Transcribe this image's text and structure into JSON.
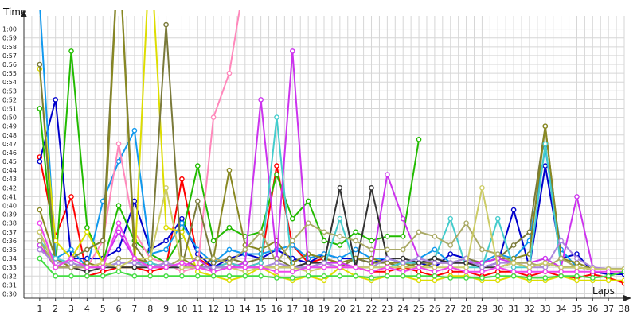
{
  "chart_data": {
    "type": "line",
    "ylabel": "Time",
    "xlabel": "Laps",
    "grid": true,
    "legend": "none",
    "xlim": [
      0,
      38
    ],
    "ylim": [
      29.5,
      61.5
    ],
    "x_ticks": [
      "1",
      "2",
      "3",
      "4",
      "5",
      "6",
      "7",
      "8",
      "9",
      "10",
      "11",
      "12",
      "13",
      "14",
      "15",
      "16",
      "17",
      "18",
      "19",
      "20",
      "21",
      "22",
      "23",
      "24",
      "25",
      "26",
      "27",
      "28",
      "29",
      "30",
      "31",
      "32",
      "33",
      "34",
      "35",
      "36",
      "37",
      "38"
    ],
    "y_ticks": [
      "0:30",
      "0:31",
      "0:32",
      "0:33",
      "0:34",
      "0:35",
      "0:36",
      "0:37",
      "0:38",
      "0:39",
      "0:40",
      "0:41",
      "0:42",
      "0:43",
      "0:44",
      "0:45",
      "0:46",
      "0:47",
      "0:48",
      "0:49",
      "0:50",
      "0:51",
      "0:52",
      "0:53",
      "0:54",
      "0:55",
      "0:56",
      "0:57",
      "0:58",
      "0:59",
      "1:00"
    ],
    "series": [
      {
        "color": "#ff0000",
        "values": [
          45.5,
          36.5,
          41,
          32,
          32.5,
          33,
          33,
          32.5,
          33,
          43,
          34,
          33,
          33.5,
          33,
          33.5,
          44.5,
          35.5,
          33.5,
          34,
          33.5,
          33,
          32.5,
          32.5,
          33,
          32.5,
          32,
          32.5,
          32.5,
          32,
          32.5,
          32.5,
          32,
          32.5,
          32,
          31.8,
          32.2,
          31.8,
          31.2
        ]
      },
      {
        "color": "#0000cc",
        "values": [
          45,
          52,
          34,
          34,
          34,
          35,
          40.5,
          35,
          36,
          38.5,
          34.5,
          33,
          34,
          34.5,
          34,
          35,
          34,
          33.5,
          34.5,
          34,
          34,
          33.5,
          34,
          33.5,
          33.5,
          33,
          34.5,
          34,
          33,
          33.5,
          39.5,
          33,
          44.5,
          34,
          34.5,
          32.5,
          32.2,
          32.2
        ]
      },
      {
        "color": "#22bb00",
        "values": [
          51,
          33,
          57.5,
          37.5,
          33.5,
          40,
          36,
          34.5,
          33.5,
          36.5,
          44.5,
          36,
          37.5,
          36.5,
          37,
          43.5,
          38.5,
          40.5,
          36,
          35.5,
          37,
          36,
          36.5,
          36.5,
          47.5,
          null,
          null,
          null,
          null,
          null,
          null,
          null,
          null,
          null,
          null,
          null,
          null,
          null
        ]
      },
      {
        "color": "#1199ee",
        "values": [
          63,
          34,
          35,
          33,
          40.5,
          45,
          48.5,
          34.5,
          35,
          38,
          35,
          33.5,
          35,
          34.5,
          34.5,
          35,
          35.5,
          34,
          34.5,
          34,
          35,
          34,
          34,
          33.5,
          34,
          35,
          33.5,
          33.5,
          33.5,
          34.5,
          34,
          36,
          46.5,
          35,
          33,
          32.8,
          32.8,
          32.8
        ]
      },
      {
        "color": "#ff88bb",
        "values": [
          35,
          34,
          33,
          33,
          36,
          47,
          37,
          34,
          33.5,
          32.5,
          33,
          50,
          55,
          66,
          null,
          null,
          null,
          null,
          null,
          null,
          null,
          null,
          null,
          null,
          null,
          null,
          null,
          null,
          null,
          null,
          null,
          null,
          null,
          null,
          null,
          null,
          null,
          null
        ]
      },
      {
        "color": "#dddd00",
        "values": [
          55.5,
          36,
          34,
          37,
          33.5,
          33,
          33,
          70,
          37.5,
          37,
          32.5,
          32,
          31.5,
          32,
          33,
          32,
          31.5,
          32,
          31.5,
          33,
          32,
          31.5,
          32,
          32,
          31.5,
          31.5,
          32,
          32,
          31.5,
          31.5,
          32,
          31.5,
          31.5,
          32,
          31.5,
          31.5,
          31.5,
          31.5
        ]
      },
      {
        "color": "#7a7a3a",
        "values": [
          56,
          33,
          34,
          35,
          36,
          70,
          35.5,
          33,
          60.5,
          33,
          40.5,
          33.5,
          34,
          33.5,
          34,
          34,
          33,
          33,
          33.5,
          33,
          34,
          33.5,
          33.5,
          33,
          33.5,
          33.5,
          33.5,
          34,
          33.5,
          34,
          35.5,
          37,
          49,
          34,
          33,
          32.8,
          32.8,
          32.8
        ]
      },
      {
        "color": "#888822",
        "values": [
          39.5,
          34,
          33,
          33.5,
          33,
          70,
          34,
          33.5,
          33,
          34,
          33,
          34,
          44,
          35.5,
          35,
          36,
          33.5,
          34.5,
          34,
          33.5,
          34,
          34,
          33.5,
          33.5,
          33,
          33.5,
          33.5,
          33.5,
          33.5,
          34,
          34,
          34.5,
          49,
          34,
          33.5,
          32.8,
          32.8,
          32.8
        ]
      },
      {
        "color": "#cc33ee",
        "values": [
          35.5,
          33,
          33,
          33,
          33.5,
          37,
          34,
          33,
          33.5,
          33,
          34,
          32.5,
          33,
          33.5,
          52,
          34,
          57.5,
          33,
          33.5,
          33.5,
          33,
          33,
          43.5,
          38.5,
          34,
          33.5,
          33.5,
          33.5,
          33.5,
          34,
          33.5,
          33.5,
          34,
          33,
          41,
          33,
          32.8,
          32.8
        ]
      },
      {
        "color": "#44cccc",
        "values": [
          36,
          34,
          33.5,
          33,
          33,
          33.5,
          33.5,
          33.5,
          33,
          33,
          33,
          33,
          33.5,
          33,
          33.5,
          50,
          32.5,
          33,
          33,
          38.5,
          33,
          33,
          33,
          33.5,
          33.5,
          34,
          38.5,
          33,
          33,
          38.5,
          33,
          33,
          47,
          33,
          33,
          32.8,
          32.8,
          32.8
        ]
      },
      {
        "color": "#333333",
        "values": [
          37,
          33,
          33,
          32.5,
          33,
          33,
          33,
          33,
          33,
          33,
          33,
          33,
          33,
          33,
          33,
          33,
          33,
          33.5,
          33.5,
          42,
          33,
          42,
          34,
          34,
          33.5,
          34,
          33.5,
          33.5,
          33,
          33,
          33.5,
          33,
          33.5,
          33,
          33,
          32.8,
          32.8,
          32.8
        ]
      },
      {
        "color": "#aaaa66",
        "values": [
          36,
          33,
          33,
          33,
          33,
          34,
          34,
          33,
          33,
          34,
          34,
          34,
          33.5,
          35,
          37,
          33.5,
          36,
          38,
          37,
          36.5,
          36,
          35,
          35,
          35,
          37,
          36.5,
          35.5,
          38,
          35,
          34.5,
          33.5,
          33.5,
          33,
          34,
          33,
          32.8,
          32.8,
          32.8
        ]
      },
      {
        "color": "#aa88dd",
        "values": [
          35,
          33.5,
          33.5,
          33,
          33,
          33.5,
          33.5,
          33,
          33.5,
          33,
          33,
          33,
          33,
          33,
          33,
          33.5,
          33,
          33,
          33.5,
          33,
          33,
          33,
          34,
          33.5,
          34,
          33.5,
          33.5,
          34,
          33,
          33.5,
          33.5,
          33,
          33,
          36,
          34,
          33,
          32.8,
          32.8
        ]
      },
      {
        "color": "#cccc66",
        "values": [
          37,
          33,
          34,
          33,
          33.5,
          33,
          34,
          34,
          42,
          33,
          33,
          32.5,
          33,
          32.5,
          33,
          33,
          33,
          32.5,
          33,
          33,
          33,
          33,
          33,
          33,
          33,
          33,
          33,
          33,
          42,
          33,
          33.5,
          33,
          33.5,
          33,
          33,
          32.8,
          32.8,
          32.8
        ]
      },
      {
        "color": "#ee44ee",
        "values": [
          38,
          33,
          34,
          33,
          33,
          38,
          34,
          33,
          33,
          33.5,
          33,
          32.5,
          33,
          33,
          33,
          32.5,
          32.5,
          33,
          33,
          33,
          33,
          32.5,
          33,
          32.5,
          33,
          32.5,
          33,
          32.5,
          32.5,
          33,
          32.5,
          32.5,
          32.5,
          32.5,
          32.5,
          32.5,
          32.5,
          32.5
        ]
      },
      {
        "color": "#44dd44",
        "values": [
          34,
          32,
          32,
          32,
          32,
          32.5,
          32,
          32,
          32,
          32,
          32,
          32,
          32,
          32,
          32,
          31.8,
          31.8,
          32,
          32,
          32,
          32,
          31.8,
          32,
          32,
          32,
          32,
          31.8,
          31.8,
          31.8,
          32,
          32,
          31.8,
          31.8,
          32,
          32,
          31.8,
          32,
          32.5
        ]
      }
    ]
  }
}
